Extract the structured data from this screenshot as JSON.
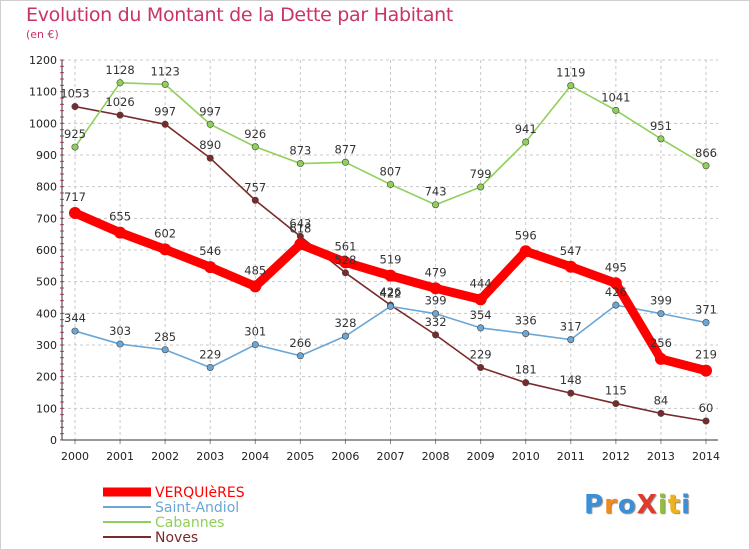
{
  "chart_data": {
    "type": "line",
    "title": "Evolution du Montant de la Dette par Habitant",
    "subtitle": "(en €)",
    "x": [
      "2000",
      "2001",
      "2002",
      "2003",
      "2004",
      "2005",
      "2006",
      "2007",
      "2008",
      "2009",
      "2010",
      "2011",
      "2012",
      "2013",
      "2014"
    ],
    "ylim": [
      0,
      1200
    ],
    "yticks": [
      0,
      100,
      200,
      300,
      400,
      500,
      600,
      700,
      800,
      900,
      1000,
      1100,
      1200
    ],
    "grid": true,
    "legend_position": "bottom-left",
    "series": [
      {
        "name": "VERQUIèRES",
        "color": "#ff0000",
        "values": [
          717,
          655,
          602,
          546,
          485,
          618,
          561,
          519,
          479,
          444,
          596,
          547,
          495,
          256,
          219
        ]
      },
      {
        "name": "Saint-Andiol",
        "color": "#6aa6d6",
        "values": [
          344,
          303,
          285,
          229,
          301,
          266,
          328,
          422,
          399,
          354,
          336,
          317,
          426,
          399,
          371
        ]
      },
      {
        "name": "Cabannes",
        "color": "#8fd05a",
        "values": [
          925,
          1128,
          1123,
          997,
          926,
          873,
          877,
          807,
          743,
          799,
          941,
          1119,
          1041,
          951,
          866
        ]
      },
      {
        "name": "Noves",
        "color": "#7a2a2a",
        "values": [
          1053,
          1026,
          997,
          890,
          757,
          643,
          528,
          426,
          332,
          229,
          181,
          148,
          115,
          84,
          60
        ]
      }
    ]
  },
  "logo": {
    "text": "ProXiti",
    "letters": [
      "P",
      "r",
      "o",
      "X",
      "i",
      "t",
      "i"
    ],
    "colors": [
      "#3a8fd8",
      "#f08a1c",
      "#3a8fd8",
      "#e03a2a",
      "#8fc03a",
      "#f0b21c",
      "#3a8fd8"
    ]
  }
}
